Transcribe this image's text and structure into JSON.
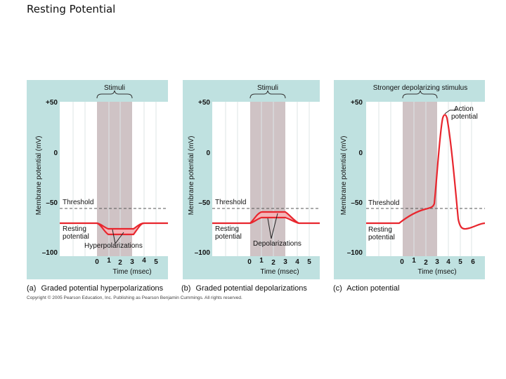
{
  "slide_title": "Resting Potential",
  "colors": {
    "panel_bg": "#bfe1e0",
    "plot_bg": "#ffffff",
    "stim_band": "#cfc3c5",
    "trace": "#e8262e",
    "threshold": "#555555"
  },
  "panels": [
    {
      "id": "a",
      "stimulus_label": "Stimuli",
      "ylabel": "Membrane potential (mV)",
      "yticks": [
        "+50",
        "0",
        "–50",
        "–100"
      ],
      "threshold_label": "Threshold",
      "resting_label": "Resting potential",
      "effect_label": "Hyperpolarizations",
      "xticks": [
        "0",
        "1",
        "2",
        "3",
        "4",
        "5"
      ],
      "xlabel": "Time (msec)",
      "caption_letter": "(a)",
      "caption": "Graded potential hyperpolarizations"
    },
    {
      "id": "b",
      "stimulus_label": "Stimuli",
      "ylabel": "Membrane potential (mV)",
      "yticks": [
        "+50",
        "0",
        "–50",
        "–100"
      ],
      "threshold_label": "Threshold",
      "resting_label": "Resting potential",
      "effect_label": "Depolarizations",
      "xticks": [
        "0",
        "1",
        "2",
        "3",
        "4",
        "5"
      ],
      "xlabel": "Time (msec)",
      "caption_letter": "(b)",
      "caption": "Graded potential depolarizations"
    },
    {
      "id": "c",
      "stimulus_label": "Stronger depolarizing stimulus",
      "ylabel": "Membrane potential (mV)",
      "yticks": [
        "+50",
        "0",
        "–50",
        "–100"
      ],
      "threshold_label": "Threshold",
      "resting_label": "Resting potential",
      "effect_label": "Action potential",
      "xticks": [
        "0",
        "1",
        "2",
        "3",
        "4",
        "5",
        "6"
      ],
      "xlabel": "Time (msec)",
      "caption_letter": "(c)",
      "caption": "Action potential"
    }
  ],
  "copyright": "Copyright © 2005 Pearson Education, Inc. Publishing as Pearson Benjamin Cummings. All rights reserved."
}
